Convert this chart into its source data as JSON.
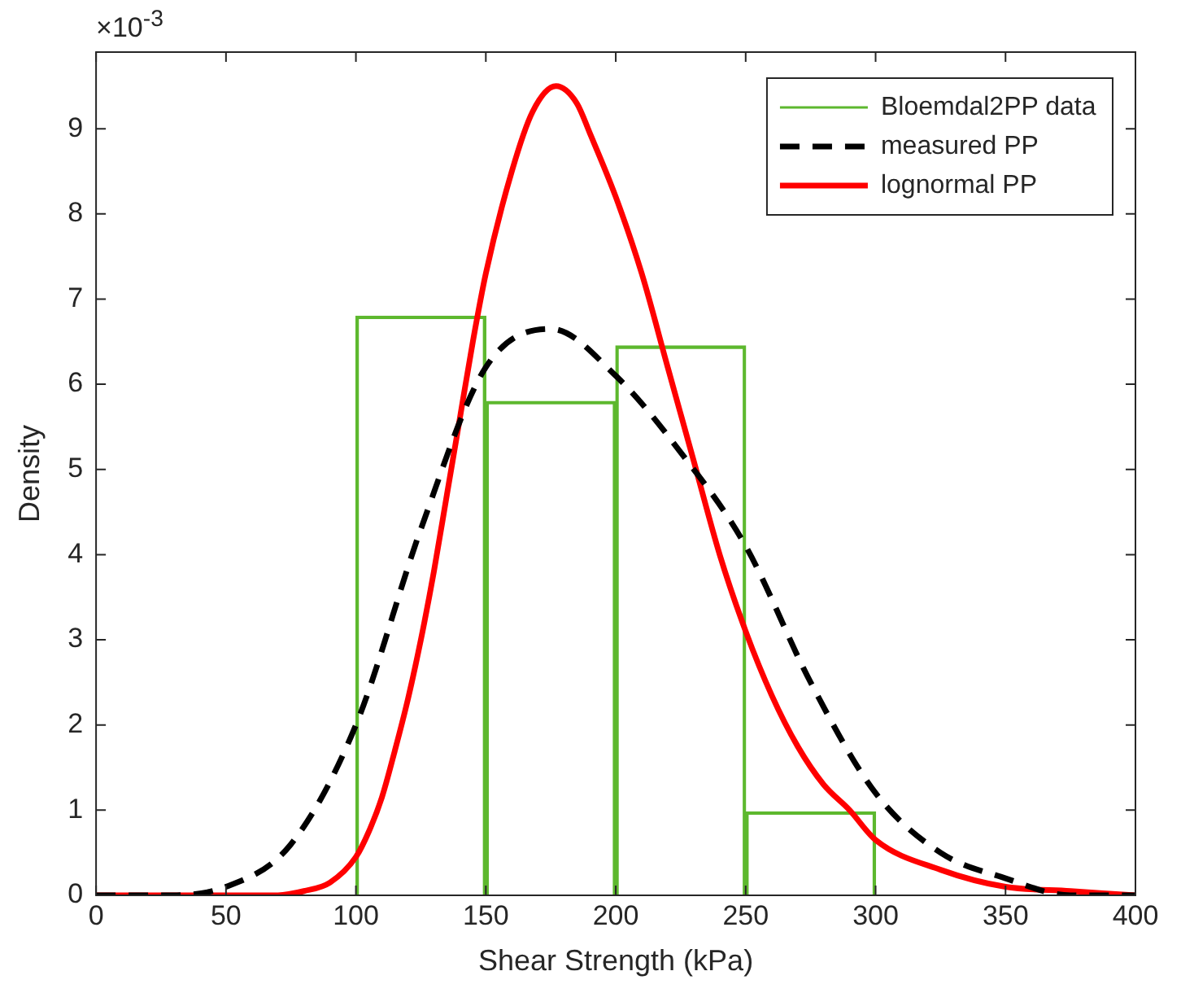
{
  "chart_data": {
    "type": "line",
    "xlabel": "Shear Strength (kPa)",
    "ylabel": "Density",
    "annotations": [
      "×10$^{-3}$"
    ],
    "xlim": [
      0,
      400
    ],
    "xticks": [
      0,
      50,
      100,
      150,
      200,
      250,
      300,
      350,
      400
    ],
    "ylim": [
      0,
      9.9
    ],
    "yticks": [
      0,
      1,
      2,
      3,
      4,
      5,
      6,
      7,
      8,
      9
    ],
    "grid": false,
    "legend": "top right",
    "marker": "none",
    "series": [
      {
        "name": "Bloemdal2PP data",
        "type": "histogram",
        "color": "#5db82e",
        "bins": [
          100,
          150,
          200,
          250,
          300
        ],
        "values": [
          6.8,
          5.8,
          6.45,
          0.98
        ]
      },
      {
        "name": "measured PP",
        "line_style": "dashed",
        "color": "#000000",
        "x": [
          0,
          25,
          50,
          75,
          100,
          125,
          150,
          175,
          200,
          225,
          250,
          275,
          300,
          325,
          350,
          375,
          400
        ],
        "values": [
          0,
          0,
          0.1,
          0.6,
          2,
          4.3,
          6.2,
          6.65,
          6.1,
          5.2,
          4.1,
          2.5,
          1.2,
          0.5,
          0.2,
          0,
          0
        ]
      },
      {
        "name": "lognormal PP",
        "line_style": "solid",
        "color": "#ff0000",
        "x": [
          0,
          50,
          70,
          80,
          90,
          100,
          105,
          110,
          115,
          120,
          125,
          130,
          135,
          140,
          145,
          150,
          160,
          168,
          177,
          185,
          190,
          200,
          210,
          220,
          230,
          240,
          250,
          260,
          270,
          280,
          290,
          300,
          325,
          350,
          375,
          400
        ],
        "values": [
          0,
          0,
          0,
          0.05,
          0.15,
          0.45,
          0.75,
          1.15,
          1.7,
          2.3,
          3,
          3.8,
          4.7,
          5.6,
          6.5,
          7.3,
          8.5,
          9.2,
          9.5,
          9.3,
          8.95,
          8.2,
          7.3,
          6.2,
          5.1,
          4,
          3.1,
          2.35,
          1.75,
          1.3,
          1,
          0.65,
          0.3,
          0.1,
          0.05,
          0
        ]
      }
    ]
  }
}
